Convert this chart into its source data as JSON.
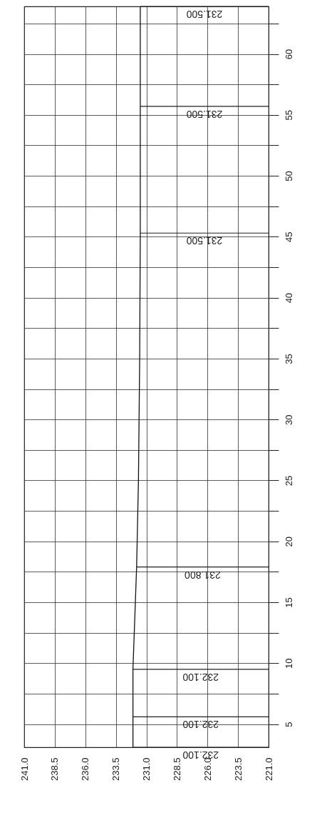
{
  "chart_data": {
    "type": "line",
    "series": [
      {
        "color": "#111111",
        "x": [
          232.1,
          232.1,
          231.8,
          231.65,
          231.55,
          231.5,
          231.5
        ],
        "values": [
          3.1,
          9.5,
          17.9,
          25,
          35,
          45.3,
          63.9
        ]
      }
    ],
    "xlim": [
      241,
      221
    ],
    "xticks": [
      {
        "value": 241,
        "label": "241.0"
      },
      {
        "value": 238.5,
        "label": "238.5"
      },
      {
        "value": 236,
        "label": "236.0"
      },
      {
        "value": 233.5,
        "label": "233.5"
      },
      {
        "value": 231,
        "label": "231.0"
      },
      {
        "value": 228.5,
        "label": "228.5"
      },
      {
        "value": 226,
        "label": "226.0"
      },
      {
        "value": 223.5,
        "label": "223.5"
      },
      {
        "value": 221,
        "label": "221.0"
      }
    ],
    "ylim": [
      3.1,
      63.9
    ],
    "yticks": [
      5,
      {
        "value": 7.5,
        "label": null
      },
      10,
      {
        "value": 12.5,
        "label": null
      },
      15,
      {
        "value": 17.5,
        "label": null
      },
      20,
      {
        "value": 22.5,
        "label": null
      },
      25,
      {
        "value": 27.5,
        "label": null
      },
      30,
      {
        "value": 32.5,
        "label": null
      },
      35,
      {
        "value": 37.5,
        "label": null
      },
      40,
      {
        "value": 42.5,
        "label": null
      },
      45,
      {
        "value": 47.5,
        "label": null
      },
      50,
      {
        "value": 52.5,
        "label": null
      },
      55,
      {
        "value": 57.5,
        "label": null
      },
      60,
      {
        "value": 62.5,
        "label": null
      }
    ],
    "grid": true,
    "ref_lines": [
      {
        "axis": "y",
        "value": 3.1
      },
      {
        "axis": "y",
        "value": 5.6
      },
      {
        "axis": "y",
        "value": 9.5
      },
      {
        "axis": "y",
        "value": 17.9
      },
      {
        "axis": "y",
        "value": 45.3
      },
      {
        "axis": "y",
        "value": 55.7
      },
      {
        "axis": "y",
        "value": 63.9
      }
    ],
    "annotations": [
      {
        "text": "232.100",
        "y": 3.1
      },
      {
        "text": "232.100",
        "y": 5.6
      },
      {
        "text": "232.100",
        "y": 9.5
      },
      {
        "text": "231.800",
        "y": 17.9
      },
      {
        "text": "231.500",
        "y": 45.3
      },
      {
        "text": "231.500",
        "y": 55.7
      },
      {
        "text": "231.500",
        "y": 63.9
      }
    ]
  }
}
